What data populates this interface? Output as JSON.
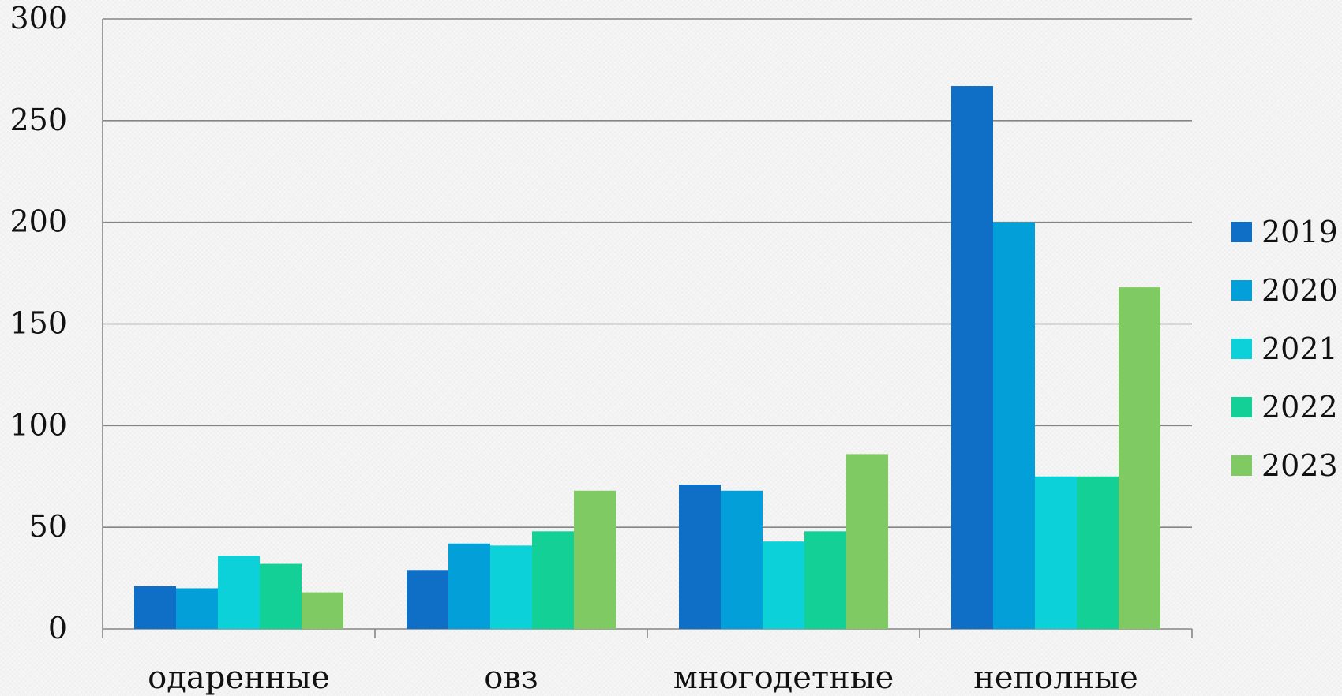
{
  "chart_data": {
    "type": "bar",
    "categories": [
      "одаренные",
      "овз",
      "многодетные",
      "неполные"
    ],
    "series": [
      {
        "name": "2019",
        "color": "#0f6ec6",
        "values": [
          21,
          29,
          71,
          267
        ]
      },
      {
        "name": "2020",
        "color": "#039fd8",
        "values": [
          20,
          42,
          68,
          200
        ]
      },
      {
        "name": "2021",
        "color": "#0cd1d9",
        "values": [
          36,
          41,
          43,
          75
        ]
      },
      {
        "name": "2022",
        "color": "#13d196",
        "values": [
          32,
          48,
          48,
          75
        ]
      },
      {
        "name": "2023",
        "color": "#7fca62",
        "values": [
          18,
          68,
          86,
          168
        ]
      }
    ],
    "ylim": [
      0,
      300
    ],
    "yticks": [
      "0",
      "50",
      "100",
      "150",
      "200",
      "250",
      "300"
    ],
    "grid": true,
    "legend_position": "right",
    "title": "",
    "xlabel": "",
    "ylabel": ""
  }
}
